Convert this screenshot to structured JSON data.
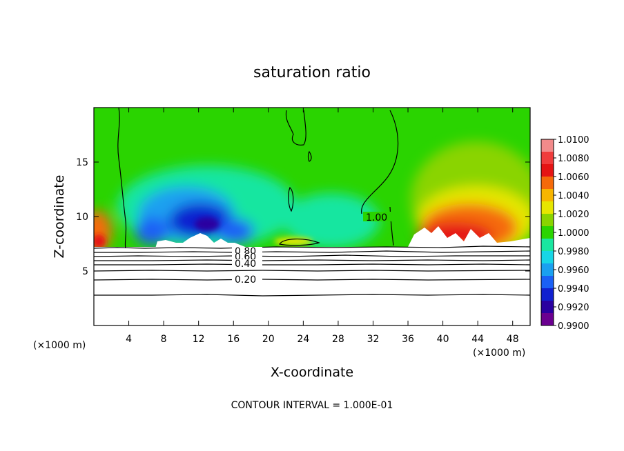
{
  "chart_data": {
    "type": "heatmap",
    "title": "saturation ratio",
    "xlabel": "X-coordinate",
    "ylabel": "Z-coordinate",
    "x_unit_left": "(×1000 m)",
    "x_unit_right": "(×1000 m)",
    "x_ticks": [
      "4",
      "8",
      "12",
      "16",
      "20",
      "24",
      "28",
      "32",
      "36",
      "40",
      "44",
      "48"
    ],
    "y_ticks": [
      "5",
      "10",
      "15"
    ],
    "xlim": [
      0,
      50
    ],
    "ylim": [
      0,
      20
    ],
    "colorbar": {
      "labels": [
        "1.0100",
        "1.0080",
        "1.0060",
        "1.0040",
        "1.0020",
        "1.0000",
        "0.9980",
        "0.9960",
        "0.9940",
        "0.9920",
        "0.9900"
      ],
      "colors": [
        "#f28a8a",
        "#f03c3c",
        "#e51414",
        "#f56a0a",
        "#f7b500",
        "#e6e600",
        "#8ad400",
        "#2ad400",
        "#19e6a0",
        "#17d6e6",
        "#1aa0f0",
        "#1a60f5",
        "#1020d0",
        "#2a00a0",
        "#6a0090"
      ]
    },
    "contour_labels": [
      "1.00",
      "0.80",
      "0.60",
      "0.40",
      "0.20"
    ],
    "footer": "CONTOUR INTERVAL = 1.000E-01"
  }
}
